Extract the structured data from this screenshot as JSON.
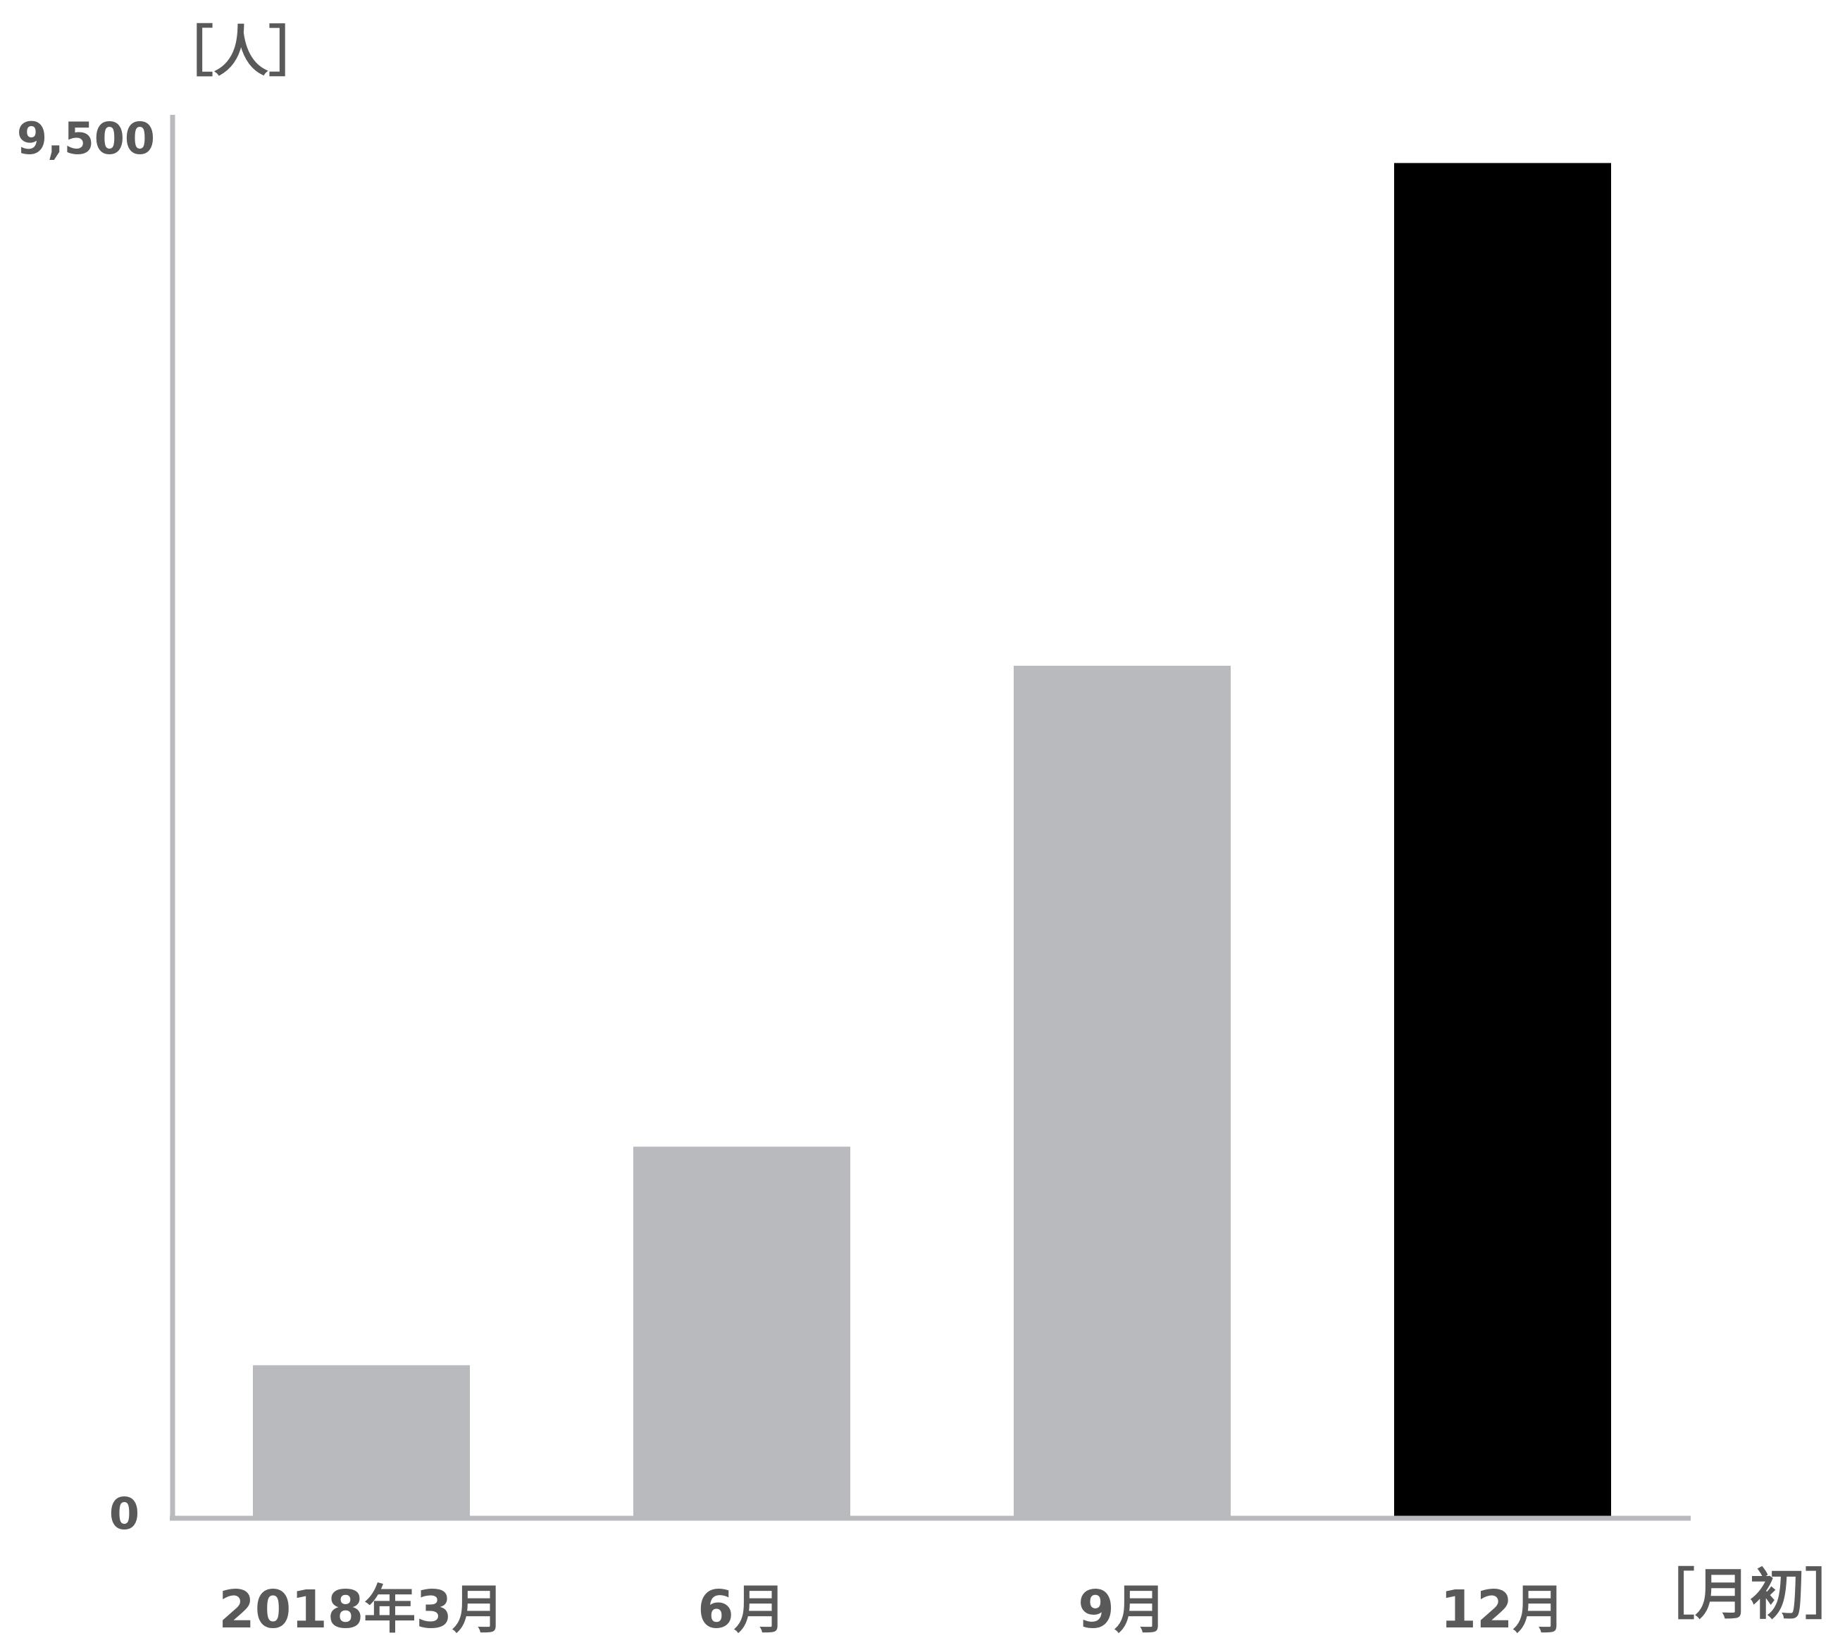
{
  "chart_data": {
    "type": "bar",
    "categories": [
      "2018年3月",
      "6月",
      "9月",
      "12月"
    ],
    "values": [
      1050,
      2550,
      5850,
      9300
    ],
    "ylim": [
      0,
      9500
    ],
    "yticks": [
      "0",
      "9,500"
    ],
    "y_unit": "［人］",
    "x_unit": "［月初］",
    "grid": false,
    "colors": [
      "#b8babd",
      "#b8babd",
      "#b8babd",
      "#000000"
    ],
    "axis_color": "#b8babd"
  }
}
